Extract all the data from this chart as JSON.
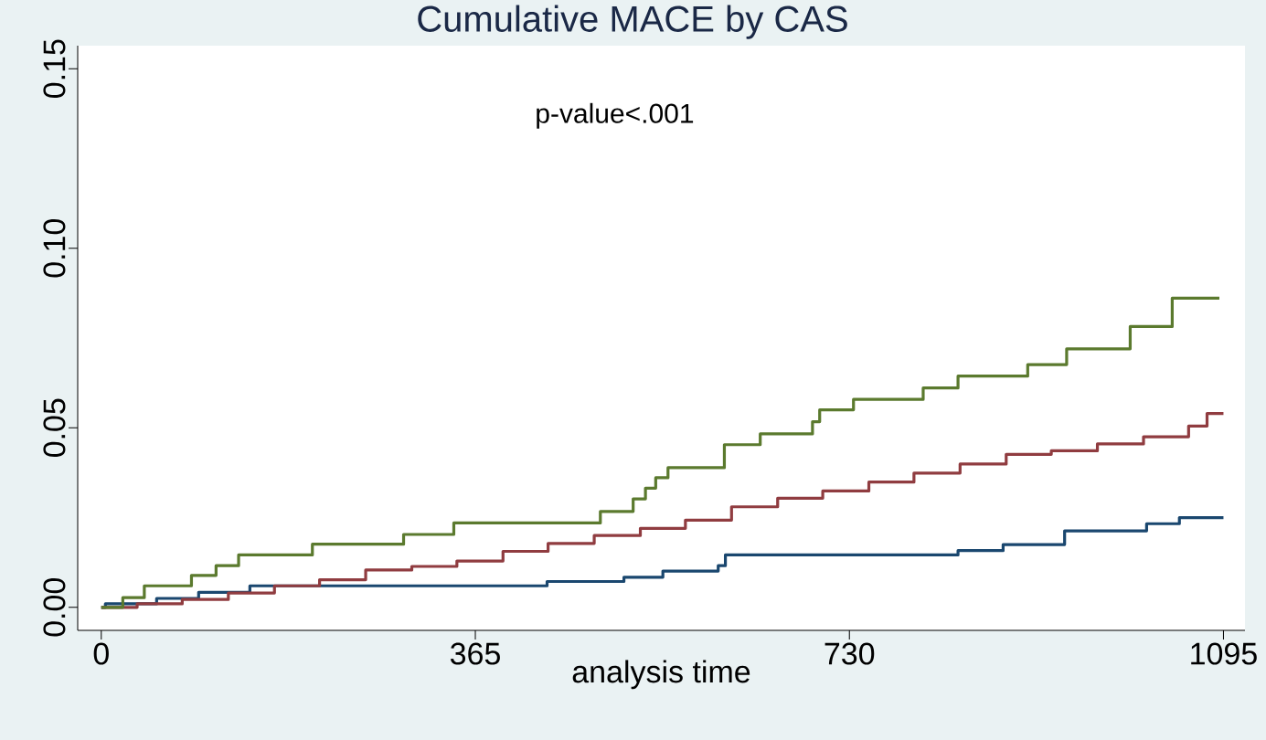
{
  "chart_data": {
    "type": "step",
    "title": "Cumulative MACE by CAS",
    "xlabel": "analysis time",
    "annotations": [
      "p-value<.001"
    ],
    "xlim": [
      -23,
      1116
    ],
    "ylim": [
      -0.0064,
      0.1564
    ],
    "xticks": [
      0,
      365,
      730,
      1095
    ],
    "yticks": [
      {
        "value": 0,
        "label": "0.00"
      },
      {
        "value": 0.05,
        "label": "0.05"
      },
      {
        "value": 0.1,
        "label": "0.10"
      },
      {
        "value": 0.15,
        "label": "0.15"
      }
    ],
    "grid": false,
    "line_style": "solid",
    "marker": "none",
    "series": [
      {
        "color": "#1a476f",
        "x": [
          0,
          4,
          54,
          95,
          145,
          435,
          510,
          548,
          602,
          609,
          836,
          880,
          940,
          1020,
          1052,
          1095
        ],
        "values": [
          0,
          0.001,
          0.0025,
          0.0042,
          0.006,
          0.0072,
          0.0084,
          0.0101,
          0.0116,
          0.0146,
          0.0158,
          0.0175,
          0.0213,
          0.0233,
          0.025,
          0.025
        ]
      },
      {
        "color": "#903c40",
        "x": [
          0,
          35,
          79,
          124,
          169,
          213,
          258,
          303,
          347,
          392,
          436,
          481,
          526,
          570,
          615,
          660,
          704,
          749,
          793,
          838,
          883,
          927,
          972,
          1017,
          1061,
          1079,
          1095
        ],
        "values": [
          0,
          0.001,
          0.0022,
          0.004,
          0.006,
          0.0077,
          0.0104,
          0.0114,
          0.0129,
          0.0156,
          0.0178,
          0.02,
          0.022,
          0.0243,
          0.028,
          0.0304,
          0.0324,
          0.0349,
          0.0374,
          0.0399,
          0.0426,
          0.0436,
          0.0455,
          0.0475,
          0.0505,
          0.054,
          0.054
        ]
      },
      {
        "color": "#5b7a2e",
        "x": [
          0,
          21,
          42,
          88,
          112,
          134,
          206,
          295,
          344,
          487,
          519,
          531,
          541,
          553,
          608,
          643,
          694,
          701,
          734,
          802,
          836,
          904,
          942,
          1004,
          1045,
          1091
        ],
        "values": [
          0,
          0.0027,
          0.006,
          0.0089,
          0.0116,
          0.0146,
          0.0176,
          0.0203,
          0.0235,
          0.0267,
          0.0302,
          0.0332,
          0.0361,
          0.0389,
          0.0453,
          0.0483,
          0.0517,
          0.055,
          0.0579,
          0.0611,
          0.0644,
          0.0676,
          0.072,
          0.0782,
          0.0861,
          0.0861
        ]
      }
    ]
  }
}
